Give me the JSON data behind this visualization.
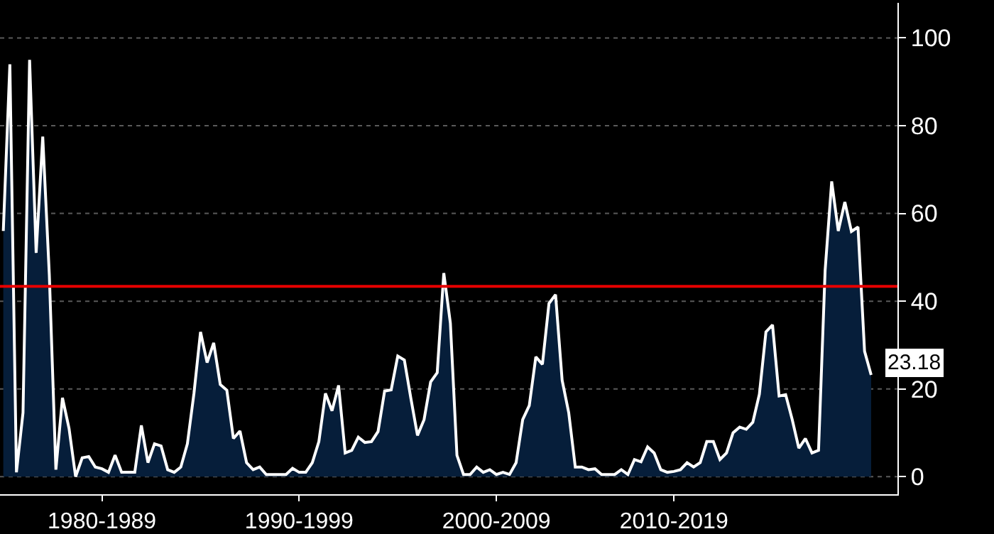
{
  "chart_data": {
    "type": "area",
    "categories": [
      null,
      null,
      null,
      null,
      null,
      null,
      null,
      null,
      null,
      null,
      null,
      null,
      null,
      null,
      null,
      "1980-1989",
      null,
      null,
      null,
      null,
      null,
      null,
      null,
      null,
      null,
      null,
      null,
      null,
      null,
      null,
      null,
      null,
      null,
      null,
      null,
      null,
      null,
      null,
      null,
      null,
      null,
      null,
      null,
      null,
      null,
      "1990-1999",
      null,
      null,
      null,
      null,
      null,
      null,
      null,
      null,
      null,
      null,
      null,
      null,
      null,
      null,
      null,
      null,
      null,
      null,
      null,
      null,
      null,
      null,
      null,
      null,
      null,
      null,
      null,
      null,
      null,
      "2000-2009",
      null,
      null,
      null,
      null,
      null,
      null,
      null,
      null,
      null,
      null,
      null,
      null,
      null,
      null,
      null,
      null,
      null,
      null,
      null,
      null,
      null,
      null,
      null,
      null,
      null,
      null,
      "2010-2019",
      null,
      null,
      null,
      null,
      null,
      null,
      null,
      null,
      null,
      null,
      null,
      null,
      null,
      null,
      null,
      null,
      null,
      null,
      null,
      null,
      null,
      null,
      null,
      null,
      null,
      null,
      null,
      null,
      null,
      null
    ],
    "series": [
      {
        "color": "#ffffff",
        "values": [
          56,
          94,
          1,
          14.6,
          95,
          51,
          77.5,
          46,
          1.6,
          18,
          11,
          0,
          4.3,
          4.6,
          2.2,
          1.8,
          1,
          4.9,
          1,
          1,
          1,
          11.7,
          3.2,
          7.5,
          7,
          1.6,
          1,
          2.2,
          7.5,
          19,
          33,
          26,
          30.5,
          21,
          19.7,
          8.7,
          10.4,
          3.2,
          1.6,
          2.2,
          0.5,
          0.5,
          0.5,
          0.5,
          1.9,
          1,
          1,
          3.2,
          8,
          19,
          15,
          20.8,
          5.4,
          6,
          9,
          7.8,
          8,
          10.3,
          19.5,
          19.8,
          27.5,
          26.6,
          17.8,
          9.4,
          13,
          21.6,
          23.7,
          46.4,
          35,
          4.9,
          0.5,
          0.5,
          2.2,
          1,
          1.6,
          0.5,
          1,
          0.5,
          3.2,
          13,
          16.2,
          27.3,
          25.6,
          39.5,
          41.5,
          22,
          14.6,
          2.2,
          2.2,
          1.6,
          1.8,
          0.5,
          0.5,
          0.5,
          1.6,
          0.5,
          3.9,
          3.4,
          6.8,
          5.4,
          1.6,
          1,
          1.2,
          1.6,
          3.2,
          2.2,
          3.2,
          8,
          8,
          3.9,
          5.4,
          10,
          11.3,
          10.8,
          12.4,
          18.8,
          33,
          34.6,
          18.4,
          18.7,
          13,
          6.5,
          8.7,
          5.4,
          6,
          47,
          67.3,
          56,
          62.6,
          55.9,
          56.9,
          28.6,
          23.18
        ]
      }
    ],
    "ylim": [
      -4,
      108
    ],
    "yticks": [
      0,
      20,
      40,
      60,
      80,
      100
    ],
    "ref_lines": [
      {
        "axis": "y",
        "value": 43.4,
        "color": "#e60000"
      }
    ],
    "annotations": [
      "23.18"
    ],
    "grid": "y"
  }
}
